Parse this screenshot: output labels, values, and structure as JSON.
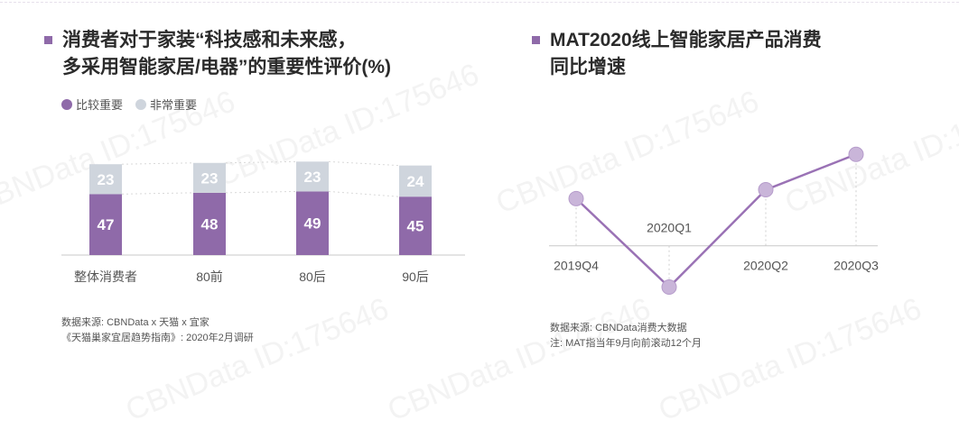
{
  "left": {
    "title_lines": [
      "消费者对于家装“科技感和未来感，",
      "多采用智能家居/电器”的重要性评价(%)"
    ],
    "legend": [
      {
        "label": "比较重要",
        "color": "#8f6aa9"
      },
      {
        "label": "非常重要",
        "color": "#cfd5dd"
      }
    ],
    "source_lines": [
      "数据来源: CBNData x 天猫 x 宜家",
      "《天猫巢家宜居趋势指南》: 2020年2月调研"
    ]
  },
  "right": {
    "title_lines": [
      "MAT2020线上智能家居产品消费",
      "同比增速"
    ],
    "source_lines": [
      "数据来源: CBNData消费大数据",
      "注: MAT指当年9月向前滚动12个月"
    ]
  },
  "watermark": "CBNData ID:175646",
  "chart_data": [
    {
      "type": "bar",
      "stacked": true,
      "categories": [
        "整体消费者",
        "80前",
        "80后",
        "90后"
      ],
      "series": [
        {
          "name": "比较重要",
          "color": "#8f6aa9",
          "values": [
            47,
            48,
            49,
            45
          ]
        },
        {
          "name": "非常重要",
          "color": "#cfd5dd",
          "values": [
            23,
            23,
            23,
            24
          ]
        }
      ],
      "ylim": [
        0,
        75
      ]
    },
    {
      "type": "line",
      "categories": [
        "2019Q4",
        "2020Q1",
        "2020Q2",
        "2020Q3"
      ],
      "series": [
        {
          "color": "#9a72b5",
          "values": [
            0.32,
            -0.28,
            0.38,
            0.62
          ]
        }
      ],
      "ylim": [
        -0.35,
        0.75
      ],
      "baseline": 0
    }
  ]
}
